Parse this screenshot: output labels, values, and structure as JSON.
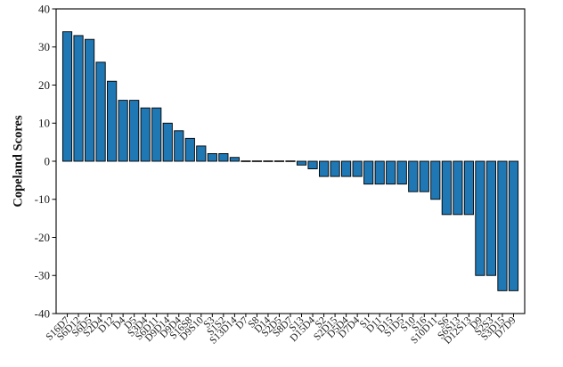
{
  "chart_data": {
    "type": "bar",
    "title": "",
    "xlabel": "",
    "ylabel": "Copeland Scores",
    "ylim": [
      -40,
      40
    ],
    "yticks": [
      40,
      30,
      20,
      10,
      0,
      -10,
      -20,
      -30,
      -40
    ],
    "grid": false,
    "legend": null,
    "bar_color": "#1f77b4",
    "bar_edge_color": "#000000",
    "axis_color": "#000000",
    "tick_label_color": "#1a1a1a",
    "x_tick_rotation_deg": 45,
    "categories": [
      "S16D7",
      "S6D12",
      "S6D5",
      "S2D4",
      "D12",
      "D4",
      "D5",
      "S3D4",
      "S6D11",
      "D9D14",
      "D9D4",
      "S16S8",
      "D9S10",
      "S3",
      "S1S2",
      "S13D14",
      "D7",
      "S8",
      "D14",
      "S2D5",
      "S8D7",
      "S13",
      "D15D4",
      "S2",
      "S2D15",
      "D5D4",
      "D7D4",
      "S1",
      "D11",
      "D15",
      "S1D5",
      "S10",
      "S16",
      "S10D11",
      "S6",
      "S6S13",
      "D12S13",
      "D9",
      "S2S3",
      "S3D15",
      "D7D9"
    ],
    "values": [
      34,
      33,
      32,
      26,
      21,
      16,
      16,
      14,
      14,
      10,
      8,
      6,
      4,
      2,
      2,
      1,
      0,
      0,
      0,
      0,
      0,
      -1,
      -2,
      -4,
      -4,
      -4,
      -4,
      -6,
      -6,
      -6,
      -6,
      -8,
      -8,
      -10,
      -14,
      -14,
      -14,
      -30,
      -30,
      -34,
      -34
    ]
  }
}
